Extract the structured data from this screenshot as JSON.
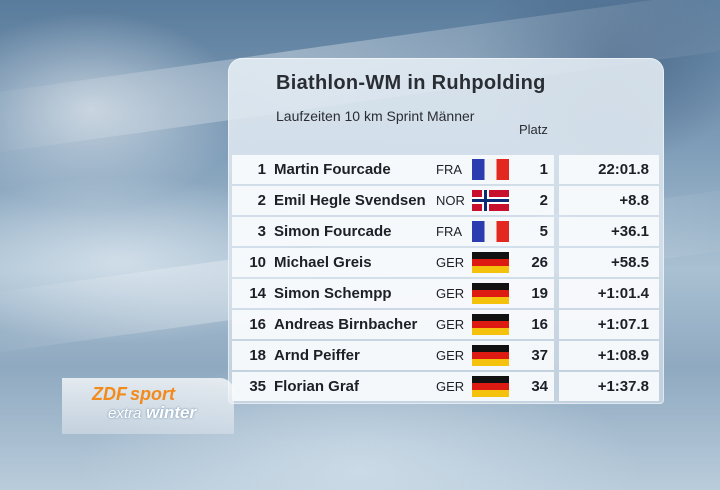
{
  "title": "Biathlon-WM in Ruhpolding",
  "subtitle": "Laufzeiten 10 km Sprint Männer",
  "column_platz": "Platz",
  "logo": {
    "zdf": "ZDF",
    "sport": "sport",
    "extra": "extra",
    "winter": "winter"
  },
  "rows": [
    {
      "rank": "1",
      "name": "Martin Fourcade",
      "nation": "FRA",
      "flag": "fra-flag-icon",
      "platz": "1",
      "time": "22:01.8"
    },
    {
      "rank": "2",
      "name": "Emil Hegle Svendsen",
      "nation": "NOR",
      "flag": "nor-flag-icon",
      "platz": "2",
      "time": "+8.8"
    },
    {
      "rank": "3",
      "name": "Simon Fourcade",
      "nation": "FRA",
      "flag": "fra-flag-icon",
      "platz": "5",
      "time": "+36.1"
    },
    {
      "rank": "10",
      "name": "Michael Greis",
      "nation": "GER",
      "flag": "ger-flag-icon",
      "platz": "26",
      "time": "+58.5"
    },
    {
      "rank": "14",
      "name": "Simon Schempp",
      "nation": "GER",
      "flag": "ger-flag-icon",
      "platz": "19",
      "time": "+1:01.4"
    },
    {
      "rank": "16",
      "name": "Andreas Birnbacher",
      "nation": "GER",
      "flag": "ger-flag-icon",
      "platz": "16",
      "time": "+1:07.1"
    },
    {
      "rank": "18",
      "name": "Arnd Peiffer",
      "nation": "GER",
      "flag": "ger-flag-icon",
      "platz": "37",
      "time": "+1:08.9"
    },
    {
      "rank": "35",
      "name": "Florian Graf",
      "nation": "GER",
      "flag": "ger-flag-icon",
      "platz": "34",
      "time": "+1:37.8"
    }
  ]
}
